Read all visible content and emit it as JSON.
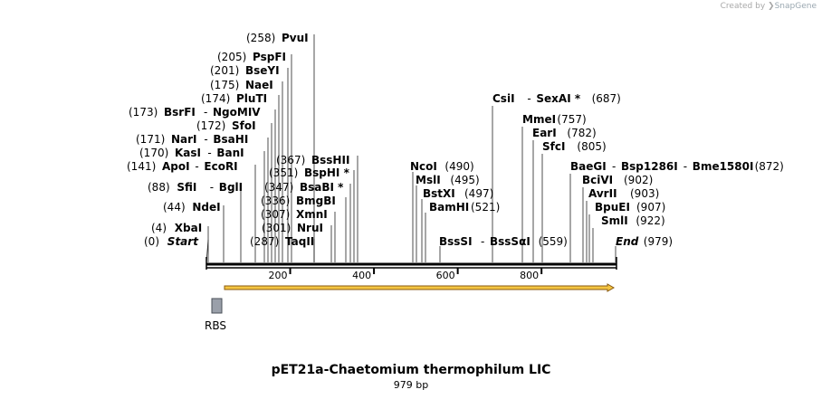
{
  "credit": {
    "prefix": "Created by",
    "brand": "SnapGene"
  },
  "title": "pET21a-Chaetomium thermophilum LIC",
  "length_label": "979 bp",
  "feature_label": "RBS",
  "colors": {
    "line": "#000000",
    "arrow_fill": "#f4c542",
    "arrow_stroke": "#8a5a10",
    "rbs": "#9aa0aa"
  },
  "ruler": [
    {
      "label": "200",
      "value": 200
    },
    {
      "label": "400",
      "value": 400
    },
    {
      "label": "600",
      "value": 600
    },
    {
      "label": "800",
      "value": 800
    }
  ],
  "sites": [
    {
      "pos": "(258)",
      "name": "PvuI"
    },
    {
      "pos": "(205)",
      "name": "PspFI"
    },
    {
      "pos": "(201)",
      "name": "BseYI"
    },
    {
      "pos": "(175)",
      "name": "NaeI"
    },
    {
      "pos": "(174)",
      "name": "PluTI"
    },
    {
      "pos": "(173)",
      "name": "BsrFI",
      "dash": "-",
      "name2": "NgoMIV"
    },
    {
      "pos": "(172)",
      "name": "SfoI"
    },
    {
      "pos": "(171)",
      "name": "NarI",
      "dash": "-",
      "name2": "BsaHI"
    },
    {
      "pos": "(170)",
      "name": "KasI",
      "dash": "-",
      "name2": "BanI"
    },
    {
      "pos": "(141)",
      "name": "ApoI",
      "dash": "-",
      "name2": "EcoRI"
    },
    {
      "pos": "(88)",
      "name": "SfiI",
      "dash": "-",
      "name2": "BglI"
    },
    {
      "pos": "(44)",
      "name": "NdeI"
    },
    {
      "pos": "(4)",
      "name": "XbaI"
    },
    {
      "pos": "(0)",
      "name": "Start",
      "italic": true
    },
    {
      "pos": "(367)",
      "name": "BssHII"
    },
    {
      "pos": "(351)",
      "name": "BspHI *"
    },
    {
      "pos": "(347)",
      "name": "BsaBI *"
    },
    {
      "pos": "(336)",
      "name": "BmgBI"
    },
    {
      "pos": "(307)",
      "name": "XmnI"
    },
    {
      "pos": "(301)",
      "name": "NruI"
    },
    {
      "pos": "(287)",
      "name": "TaqII"
    },
    {
      "pos": "(490)",
      "name": "NcoI"
    },
    {
      "pos": "(495)",
      "name": "MslI"
    },
    {
      "pos": "(497)",
      "name": "BstXI"
    },
    {
      "pos": "(521)",
      "name": "BamHI"
    },
    {
      "pos": "(559)",
      "name": "BssSI",
      "dash": "-",
      "name2": "BssSαI"
    },
    {
      "pos": "(687)",
      "name": "CsiI",
      "dash": "-",
      "name2": "SexAI *"
    },
    {
      "pos": "(757)",
      "name": "MmeI"
    },
    {
      "pos": "(782)",
      "name": "EarI"
    },
    {
      "pos": "(805)",
      "name": "SfcI"
    },
    {
      "pos": "(872)",
      "name": "BaeGI",
      "dash": "-",
      "name2": "Bsp1286I",
      "dash2": "-",
      "name3": "Bme1580I"
    },
    {
      "pos": "(902)",
      "name": "BciVI"
    },
    {
      "pos": "(903)",
      "name": "AvrII"
    },
    {
      "pos": "(907)",
      "name": "BpuEI"
    },
    {
      "pos": "(922)",
      "name": "SmlI"
    },
    {
      "pos": "(979)",
      "name": "End",
      "italic": true
    }
  ]
}
